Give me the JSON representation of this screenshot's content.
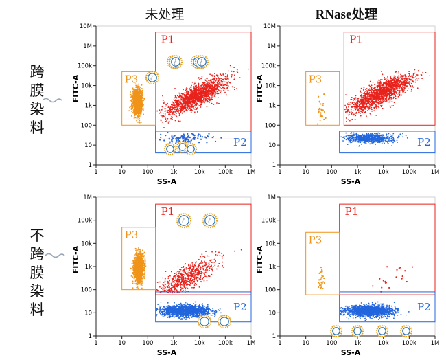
{
  "column_headers": [
    "未处理",
    "RNase处理"
  ],
  "row_headers": [
    "跨膜染料",
    "不跨膜染料"
  ],
  "colors": {
    "P1": "#e8221c",
    "P2": "#2266dd",
    "P3": "#f0941a",
    "vesicle_ring": "#e6a020",
    "vesicle_inner": "#2a78b8",
    "rna": "#9aa7b6"
  },
  "chart_data": [
    {
      "type": "scatter",
      "title": "未处理 / 跨膜染料",
      "xlabel": "SS-A",
      "ylabel": "FITC-A",
      "xscale": "log",
      "yscale": "log",
      "xlim": [
        1,
        1000000
      ],
      "ylim": [
        1,
        10000000
      ],
      "x_ticks": [
        "1",
        "10",
        "100",
        "1k",
        "10k",
        "100k",
        "1M"
      ],
      "y_ticks": [
        "1",
        "10",
        "100",
        "1k",
        "10k",
        "100k",
        "1M",
        "10M"
      ],
      "gates": [
        {
          "name": "P1",
          "x_range": [
            200,
            1000000
          ],
          "y_range": [
            20,
            5000000
          ],
          "label": "P1"
        },
        {
          "name": "P2",
          "x_range": [
            200,
            1000000
          ],
          "y_range": [
            4,
            50
          ],
          "label": "P2"
        },
        {
          "name": "P3",
          "x_range": [
            10,
            200
          ],
          "y_range": [
            100,
            50000
          ],
          "label": "P3"
        }
      ],
      "populations": [
        {
          "gate": "P1",
          "density": "high",
          "x_center": 8000,
          "y_center": 3000
        },
        {
          "gate": "P2",
          "density": "low",
          "x_center": 3000,
          "y_center": 22
        },
        {
          "gate": "P3",
          "density": "high",
          "x_center": 40,
          "y_center": 1500
        }
      ]
    },
    {
      "type": "scatter",
      "title": "RNase处理 / 跨膜染料",
      "xlabel": "SS-A",
      "ylabel": "FITC-A",
      "xscale": "log",
      "yscale": "log",
      "xlim": [
        1,
        1000000
      ],
      "ylim": [
        1,
        10000000
      ],
      "x_ticks": [
        "1",
        "10",
        "100",
        "1k",
        "10k",
        "100k",
        "1M"
      ],
      "y_ticks": [
        "1",
        "10",
        "100",
        "1k",
        "10k",
        "100k",
        "1M",
        "10M"
      ],
      "gates": [
        {
          "name": "P1",
          "x_range": [
            300,
            1000000
          ],
          "y_range": [
            100,
            5000000
          ],
          "label": "P1"
        },
        {
          "name": "P2",
          "x_range": [
            200,
            1000000
          ],
          "y_range": [
            4,
            50
          ],
          "label": "P2"
        },
        {
          "name": "P3",
          "x_range": [
            10,
            200
          ],
          "y_range": [
            100,
            50000
          ],
          "label": "P3"
        }
      ],
      "populations": [
        {
          "gate": "P1",
          "density": "high",
          "x_center": 8000,
          "y_center": 4000
        },
        {
          "gate": "P2",
          "density": "medium",
          "x_center": 3000,
          "y_center": 22
        },
        {
          "gate": "P3",
          "density": "sparse",
          "x_center": 40,
          "y_center": 500
        }
      ]
    },
    {
      "type": "scatter",
      "title": "未处理 / 不跨膜染料",
      "xlabel": "SS-A",
      "ylabel": "FITC-A",
      "xscale": "log",
      "yscale": "log",
      "xlim": [
        1,
        1000000
      ],
      "ylim": [
        1,
        1000000
      ],
      "x_ticks": [
        "1",
        "10",
        "100",
        "1k",
        "10k",
        "100k",
        "1M"
      ],
      "y_ticks": [
        "1",
        "10",
        "100",
        "1k",
        "10k",
        "100k",
        "1M"
      ],
      "gates": [
        {
          "name": "P1",
          "x_range": [
            200,
            1000000
          ],
          "y_range": [
            60,
            500000
          ],
          "label": "P1"
        },
        {
          "name": "P2",
          "x_range": [
            200,
            1000000
          ],
          "y_range": [
            4,
            80
          ],
          "label": "P2"
        },
        {
          "name": "P3",
          "x_range": [
            10,
            200
          ],
          "y_range": [
            100,
            50000
          ],
          "label": "P3"
        }
      ],
      "populations": [
        {
          "gate": "P1",
          "density": "medium",
          "x_center": 3000,
          "y_center": 300
        },
        {
          "gate": "P2",
          "density": "high",
          "x_center": 3000,
          "y_center": 12
        },
        {
          "gate": "P3",
          "density": "high",
          "x_center": 45,
          "y_center": 800
        }
      ]
    },
    {
      "type": "scatter",
      "title": "RNase处理 / 不跨膜染料",
      "xlabel": "SS-A",
      "ylabel": "FITC-A",
      "xscale": "log",
      "yscale": "log",
      "xlim": [
        1,
        1000000
      ],
      "ylim": [
        1,
        1000000
      ],
      "x_ticks": [
        "1",
        "10",
        "100",
        "1k",
        "10k",
        "100k",
        "1M"
      ],
      "y_ticks": [
        "1",
        "10",
        "100",
        "1k",
        "10k",
        "100k",
        "1M"
      ],
      "gates": [
        {
          "name": "P1",
          "x_range": [
            200,
            1000000
          ],
          "y_range": [
            60,
            500000
          ],
          "label": "P1"
        },
        {
          "name": "P2",
          "x_range": [
            200,
            1000000
          ],
          "y_range": [
            4,
            80
          ],
          "label": "P2"
        },
        {
          "name": "P3",
          "x_range": [
            10,
            200
          ],
          "y_range": [
            60,
            30000
          ],
          "label": "P3"
        }
      ],
      "populations": [
        {
          "gate": "P1",
          "density": "very_sparse",
          "x_center": 20000,
          "y_center": 200
        },
        {
          "gate": "P2",
          "density": "high",
          "x_center": 3000,
          "y_center": 12
        },
        {
          "gate": "P3",
          "density": "sparse",
          "x_center": 40,
          "y_center": 300
        }
      ]
    }
  ]
}
